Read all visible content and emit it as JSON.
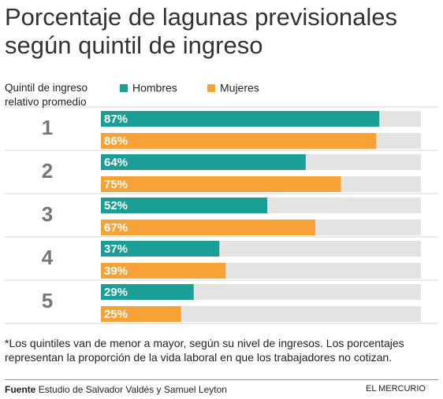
{
  "chart_data": {
    "type": "bar",
    "orientation": "horizontal",
    "title": "Porcentaje de lagunas previsionales según quintil de ingreso",
    "y_label": "Quintil de ingreso relativo promedio",
    "categories": [
      "1",
      "2",
      "3",
      "4",
      "5"
    ],
    "xlim": [
      0,
      100
    ],
    "track_color": "#e3e3e3",
    "series": [
      {
        "name": "Hombres",
        "color": "#1a9e96",
        "values": [
          87,
          64,
          52,
          37,
          29
        ],
        "value_labels": [
          "87%",
          "64%",
          "52%",
          "37%",
          "29%"
        ]
      },
      {
        "name": "Mujeres",
        "color": "#f6a236",
        "values": [
          86,
          75,
          67,
          39,
          25
        ],
        "value_labels": [
          "86%",
          "75%",
          "67%",
          "39%",
          "25%"
        ]
      }
    ],
    "footnote": "*Los quintiles van de menor a mayor, según su nivel de ingresos. Los porcentajes representan la proporción de la vida laboral en que los trabajadores no cotizan.",
    "source_label": "Fuente",
    "source": "Estudio de Salvador Valdés y Samuel Leyton",
    "publisher": "EL MERCURIO"
  }
}
